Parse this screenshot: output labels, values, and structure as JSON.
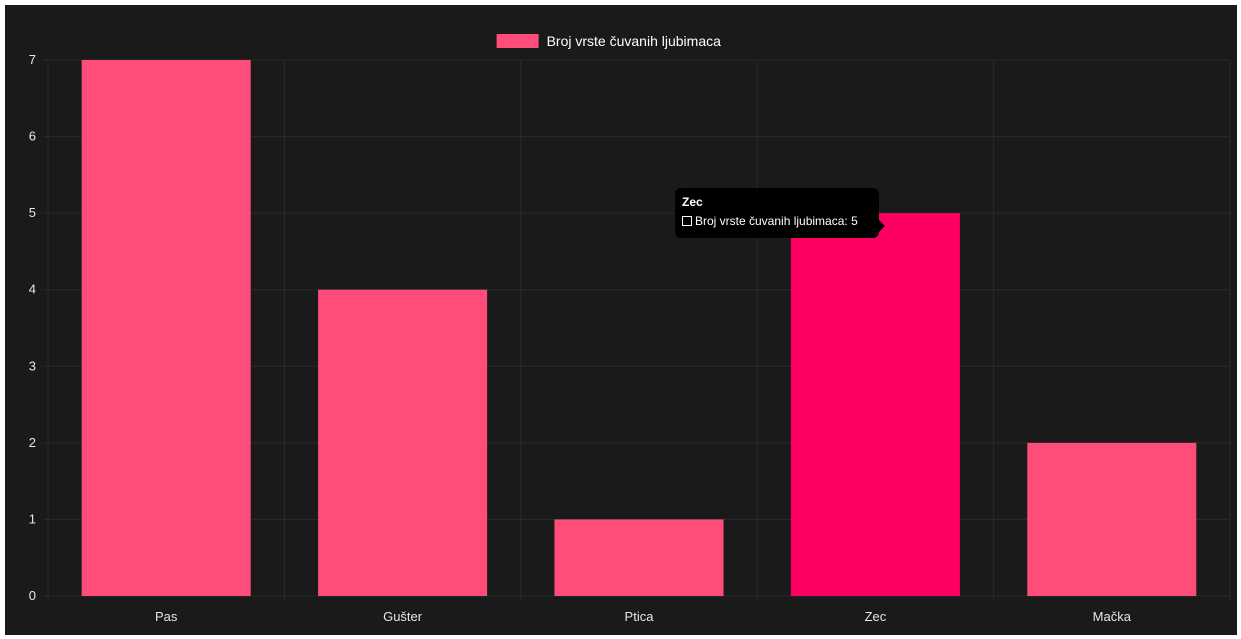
{
  "chart_data": {
    "type": "bar",
    "categories": [
      "Pas",
      "Gušter",
      "Ptica",
      "Zec",
      "Mačka"
    ],
    "series": [
      {
        "name": "Broj vrste čuvanih ljubimaca",
        "values": [
          7,
          4,
          1,
          5,
          2
        ]
      }
    ],
    "ylim": [
      0,
      7
    ],
    "yticks": [
      "0",
      "1",
      "2",
      "3",
      "4",
      "5",
      "6",
      "7"
    ],
    "legend_position": "top-center",
    "grid": true,
    "colors": {
      "background": "#1a1a1a",
      "bar": "#ff4d7a",
      "bar_hover": "#ff0062",
      "grid": "#2a2a2a",
      "text": "#e6e6e6"
    },
    "highlighted_category": "Zec"
  },
  "tooltip": {
    "title": "Zec",
    "label": "Broj vrste čuvanih ljubimaca: 5"
  }
}
